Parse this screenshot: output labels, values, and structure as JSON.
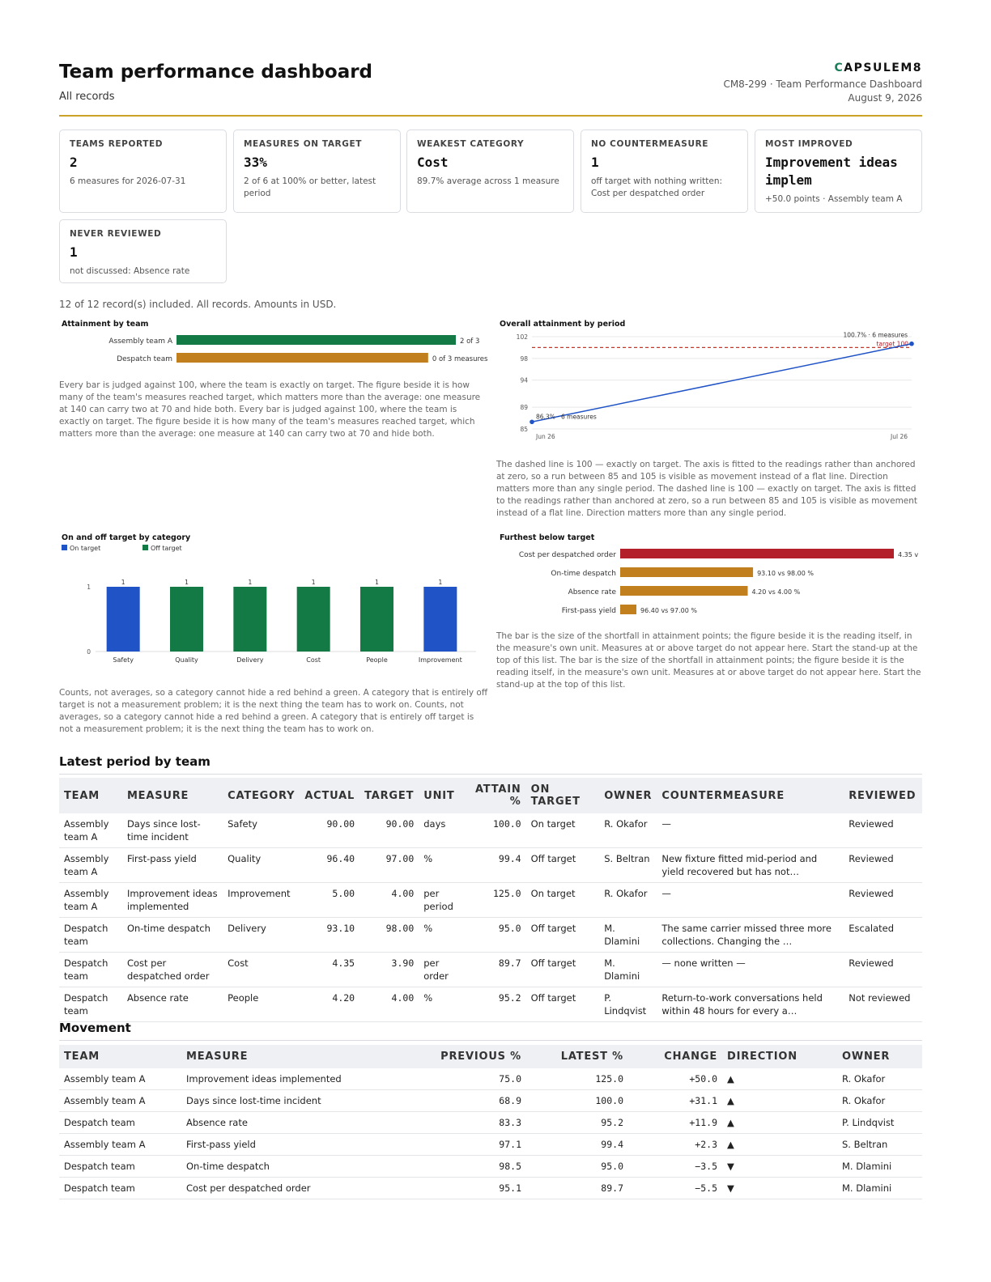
{
  "header": {
    "title": "Team performance dashboard",
    "subtitle": "All records",
    "brand_first": "C",
    "brand_rest": "APSULEM8",
    "doc_ref": "CM8-299 · Team Performance Dashboard",
    "date": "August 9, 2026"
  },
  "kpis": [
    {
      "label": "Teams reported",
      "value": "2",
      "sub": "6 measures for 2026-07-31"
    },
    {
      "label": "Measures on target",
      "value": "33%",
      "sub": "2 of 6 at 100% or better, latest period"
    },
    {
      "label": "Weakest category",
      "value": "Cost",
      "sub": "89.7% average across 1 measure"
    },
    {
      "label": "No countermeasure",
      "value": "1",
      "sub": "off target with nothing written: Cost per despatched order"
    },
    {
      "label": "Most improved",
      "value": "Improvement ideas implem",
      "sub": "+50.0 points · Assembly team A"
    },
    {
      "label": "Never reviewed",
      "value": "1",
      "sub": "not discussed: Absence rate"
    }
  ],
  "records_note": "12 of 12 record(s) included. All records. Amounts in USD.",
  "captions": {
    "attainment": "Every bar is judged against 100, where the team is exactly on target. The figure beside it is how many of the team's measures reached target, which matters more than the average: one measure at 140 can carry two at 70 and hide both. Every bar is judged against 100, where the team is exactly on target. The figure beside it is how many of the team's measures reached target, which matters more than the average: one measure at 140 can carry two at 70 and hide both.",
    "overall": "The dashed line is 100 — exactly on target. The axis is fitted to the readings rather than anchored at zero, so a run between 85 and 105 is visible as movement instead of a flat line. Direction matters more than any single period. The dashed line is 100 — exactly on target. The axis is fitted to the readings rather than anchored at zero, so a run between 85 and 105 is visible as movement instead of a flat line. Direction matters more than any single period.",
    "category": "Counts, not averages, so a category cannot hide a red behind a green. A category that is entirely off target is not a measurement problem; it is the next thing the team has to work on. Counts, not averages, so a category cannot hide a red behind a green. A category that is entirely off target is not a measurement problem; it is the next thing the team has to work on.",
    "furthest": "The bar is the size of the shortfall in attainment points; the figure beside it is the reading itself, in the measure's own unit. Measures at or above target do not appear here. Start the stand-up at the top of this list. The bar is the size of the shortfall in attainment points; the figure beside it is the reading itself, in the measure's own unit. Measures at or above target do not appear here. Start the stand-up at the top of this list."
  },
  "chart_data": [
    {
      "type": "bar",
      "title": "Attainment by team",
      "orientation": "horizontal",
      "categories": [
        "Assembly team A",
        "Despatch team"
      ],
      "values": [
        105.0,
        94.6
      ],
      "labels": [
        "2 of 3",
        "0 of 3 measures"
      ],
      "colors": [
        "#147a45",
        "#c17f1e"
      ]
    },
    {
      "type": "line",
      "title": "Overall attainment by period",
      "x": [
        "Jun 26",
        "Jul 26"
      ],
      "values": [
        86.3,
        100.7
      ],
      "point_labels": [
        "86.3% · 6 measures",
        "100.7% · 6 measures"
      ],
      "target": 100,
      "target_label": "target 100",
      "yticks": [
        85,
        89,
        94,
        98,
        102
      ],
      "ylim": [
        85,
        102
      ],
      "color": "#1f53c6"
    },
    {
      "type": "bar",
      "title": "On and off target by category",
      "categories": [
        "Safety",
        "Quality",
        "Delivery",
        "Cost",
        "People",
        "Improvement"
      ],
      "values": [
        1,
        1,
        1,
        1,
        1,
        1
      ],
      "status": [
        "on",
        "off",
        "off",
        "off",
        "off",
        "on"
      ],
      "yticks": [
        0,
        1
      ],
      "ylim": [
        0,
        1.5
      ],
      "legend": [
        {
          "name": "On target",
          "color": "#1f53c6"
        },
        {
          "name": "Off target",
          "color": "#147a45"
        }
      ],
      "legend_position": "top-left"
    },
    {
      "type": "bar",
      "title": "Furthest below target",
      "orientation": "horizontal",
      "categories": [
        "Cost per despatched order",
        "On-time despatch",
        "Absence rate",
        "First-pass yield"
      ],
      "values": [
        10.3,
        5.0,
        4.8,
        0.6
      ],
      "labels": [
        "4.35 v",
        "93.10 vs 98.00 %",
        "4.20 vs 4.00 %",
        "96.40 vs 97.00 %"
      ],
      "colors": [
        "#b3202a",
        "#c17f1e",
        "#c17f1e",
        "#c17f1e"
      ]
    }
  ],
  "latest": {
    "title": "Latest period by team",
    "headers": [
      "TEAM",
      "MEASURE",
      "CATEGORY",
      "ACTUAL",
      "TARGET",
      "UNIT",
      "ATTAIN %",
      "ON TARGET",
      "OWNER",
      "COUNTERMEASURE",
      "REVIEWED"
    ],
    "rows": [
      [
        "Assembly team A",
        "Days since lost-time incident",
        "Safety",
        "90.00",
        "90.00",
        "days",
        "100.0",
        "On target",
        "R. Okafor",
        "—",
        "Reviewed"
      ],
      [
        "Assembly team A",
        "First-pass yield",
        "Quality",
        "96.40",
        "97.00",
        "%",
        "99.4",
        "Off target",
        "S. Beltran",
        "New fixture fitted mid-period and yield recovered but has not…",
        "Reviewed"
      ],
      [
        "Assembly team A",
        "Improvement ideas implemented",
        "Improvement",
        "5.00",
        "4.00",
        "per period",
        "125.0",
        "On target",
        "R. Okafor",
        "—",
        "Reviewed"
      ],
      [
        "Despatch team",
        "On-time despatch",
        "Delivery",
        "93.10",
        "98.00",
        "%",
        "95.0",
        "Off target",
        "M. Dlamini",
        "The same carrier missed three more collections. Changing the …",
        "Escalated"
      ],
      [
        "Despatch team",
        "Cost per despatched order",
        "Cost",
        "4.35",
        "3.90",
        "per order",
        "89.7",
        "Off target",
        "M. Dlamini",
        "— none written —",
        "Reviewed"
      ],
      [
        "Despatch team",
        "Absence rate",
        "People",
        "4.20",
        "4.00",
        "%",
        "95.2",
        "Off target",
        "P. Lindqvist",
        "Return-to-work conversations held within 48 hours for every a…",
        "Not reviewed"
      ]
    ]
  },
  "movement": {
    "title": "Movement",
    "headers": [
      "TEAM",
      "MEASURE",
      "PREVIOUS %",
      "LATEST %",
      "CHANGE",
      "DIRECTION",
      "OWNER"
    ],
    "rows": [
      [
        "Assembly team A",
        "Improvement ideas implemented",
        "75.0",
        "125.0",
        "+50.0",
        "▲",
        "R. Okafor"
      ],
      [
        "Assembly team A",
        "Days since lost-time incident",
        "68.9",
        "100.0",
        "+31.1",
        "▲",
        "R. Okafor"
      ],
      [
        "Despatch team",
        "Absence rate",
        "83.3",
        "95.2",
        "+11.9",
        "▲",
        "P. Lindqvist"
      ],
      [
        "Assembly team A",
        "First-pass yield",
        "97.1",
        "99.4",
        "+2.3",
        "▲",
        "S. Beltran"
      ],
      [
        "Despatch team",
        "On-time despatch",
        "98.5",
        "95.0",
        "−3.5",
        "▼",
        "M. Dlamini"
      ],
      [
        "Despatch team",
        "Cost per despatched order",
        "95.1",
        "89.7",
        "−5.5",
        "▼",
        "M. Dlamini"
      ]
    ]
  }
}
